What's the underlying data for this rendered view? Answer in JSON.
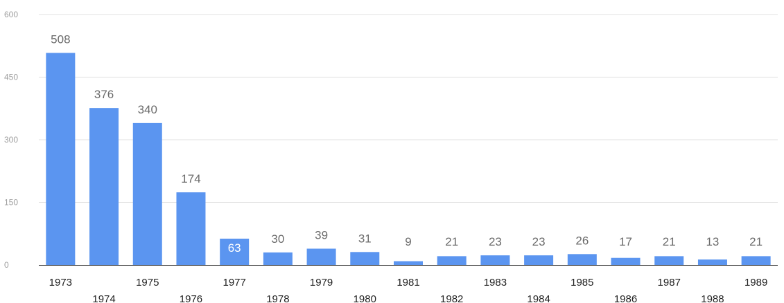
{
  "chart_data": {
    "type": "bar",
    "title": "",
    "xlabel": "",
    "ylabel": "",
    "categories": [
      "1973",
      "1974",
      "1975",
      "1976",
      "1977",
      "1978",
      "1979",
      "1980",
      "1981",
      "1982",
      "1983",
      "1984",
      "1985",
      "1986",
      "1987",
      "1988",
      "1989"
    ],
    "values": [
      508,
      376,
      340,
      174,
      63,
      30,
      39,
      31,
      9,
      21,
      23,
      23,
      26,
      17,
      21,
      13,
      21
    ],
    "ylim": [
      0,
      600
    ],
    "yticks": [
      "0",
      "150",
      "300",
      "450",
      "600"
    ],
    "grid": true,
    "legend": "none",
    "data_labels": true,
    "colors": {
      "bar": "#5b95f0",
      "grid": "#e0e0e0",
      "axis": "#333333",
      "label": "#6b6b6b"
    }
  }
}
